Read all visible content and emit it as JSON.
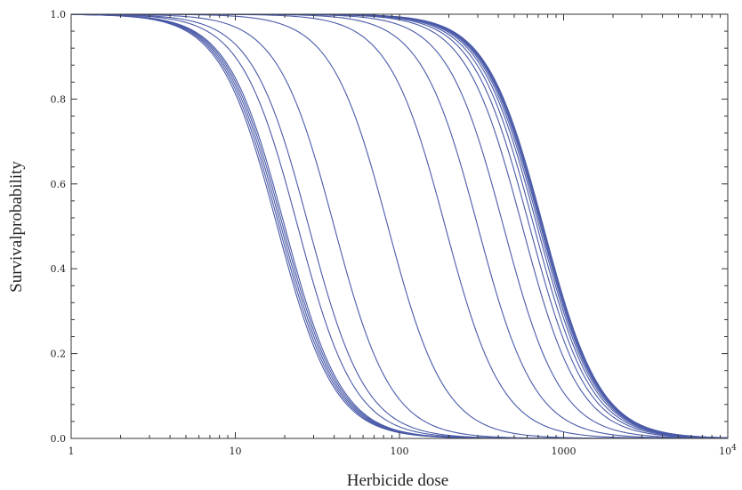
{
  "chart_data": {
    "type": "line",
    "title": "",
    "xlabel": "Herbicide dose",
    "ylabel": "Survivalprobability",
    "xscale": "log",
    "xlim": [
      1,
      10000
    ],
    "ylim": [
      0,
      1
    ],
    "grid": false,
    "legend": "none",
    "series_color": "#4a5aa8",
    "x_ticks": [
      {
        "value": 1,
        "label": "1"
      },
      {
        "value": 10,
        "label": "10"
      },
      {
        "value": 100,
        "label": "100"
      },
      {
        "value": 1000,
        "label": "1000"
      },
      {
        "value": 10000,
        "label": "10",
        "exponent": "4"
      }
    ],
    "y_ticks": [
      {
        "value": 0.0,
        "label": "0.0"
      },
      {
        "value": 0.2,
        "label": "0.2"
      },
      {
        "value": 0.4,
        "label": "0.4"
      },
      {
        "value": 0.6,
        "label": "0.6"
      },
      {
        "value": 0.8,
        "label": "0.8"
      },
      {
        "value": 1.0,
        "label": "1.0"
      }
    ],
    "curve_model": "y = 1 / (1 + (x / ld50)^slope)",
    "series": [
      {
        "ld50": 18,
        "slope": 2.5
      },
      {
        "ld50": 18.5,
        "slope": 2.5
      },
      {
        "ld50": 19,
        "slope": 2.5
      },
      {
        "ld50": 19.5,
        "slope": 2.5
      },
      {
        "ld50": 20,
        "slope": 2.5
      },
      {
        "ld50": 24,
        "slope": 2.5
      },
      {
        "ld50": 28,
        "slope": 2.5
      },
      {
        "ld50": 40,
        "slope": 2.5
      },
      {
        "ld50": 85,
        "slope": 2.5
      },
      {
        "ld50": 190,
        "slope": 2.5
      },
      {
        "ld50": 300,
        "slope": 2.5
      },
      {
        "ld50": 430,
        "slope": 2.5
      },
      {
        "ld50": 560,
        "slope": 2.5
      },
      {
        "ld50": 620,
        "slope": 2.5
      },
      {
        "ld50": 660,
        "slope": 2.5
      },
      {
        "ld50": 690,
        "slope": 2.5
      },
      {
        "ld50": 710,
        "slope": 2.5
      },
      {
        "ld50": 725,
        "slope": 2.5
      },
      {
        "ld50": 735,
        "slope": 2.5
      },
      {
        "ld50": 745,
        "slope": 2.5
      },
      {
        "ld50": 752,
        "slope": 2.5
      }
    ]
  }
}
